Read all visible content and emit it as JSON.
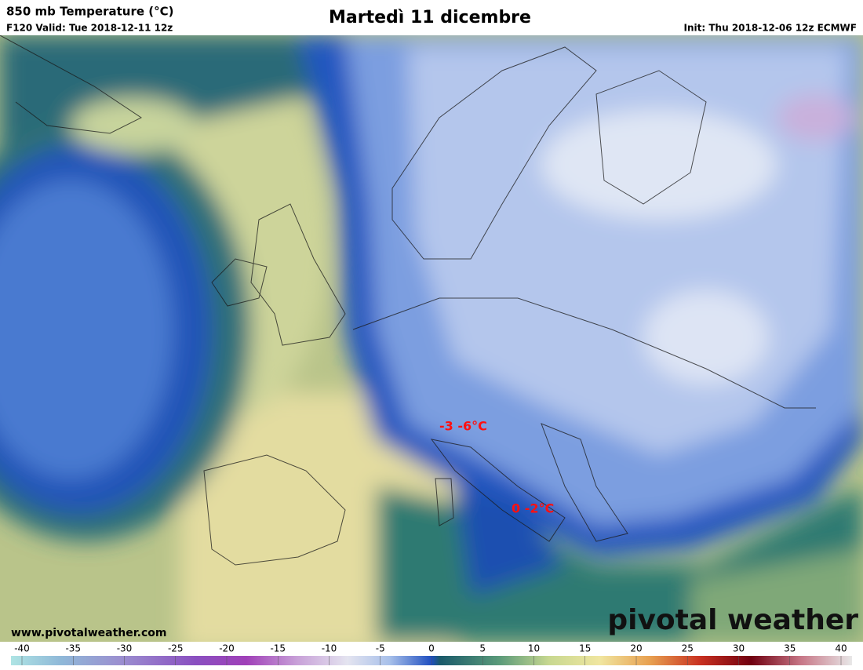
{
  "header": {
    "title": "850 mb Temperature (°C)",
    "valid": "F120 Valid: Tue 2018-12-11 12z",
    "headline": "Martedì 11 dicembre",
    "init": "Init: Thu 2018-12-06 12z ECMWF"
  },
  "annotations": [
    "-3 -6°C",
    "0 -2°C"
  ],
  "footer": {
    "website": "www.pivotalweather.com",
    "logo": "pivotal weather"
  },
  "colorbar": {
    "ticks": [
      -40,
      -35,
      -30,
      -25,
      -20,
      -15,
      -10,
      -5,
      0,
      5,
      10,
      15,
      20,
      25,
      30,
      35,
      40
    ]
  }
}
